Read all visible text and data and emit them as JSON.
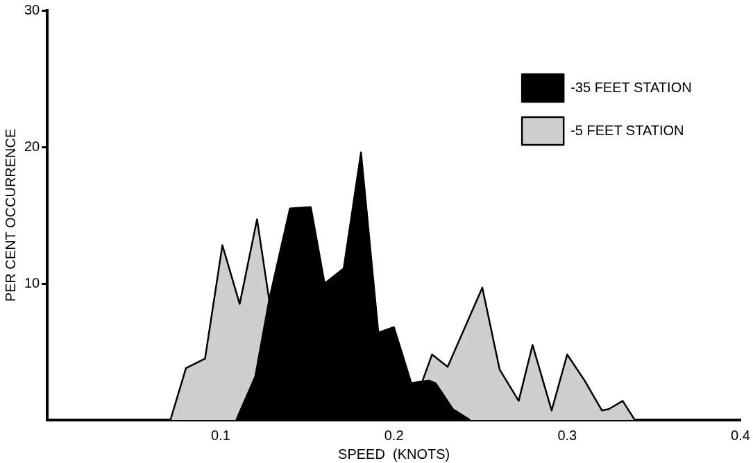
{
  "chart_data": {
    "type": "area",
    "xlabel": "SPEED  (KNOTS)",
    "ylabel": "PER CENT OCCURRENCE",
    "xlim": [
      0,
      0.4
    ],
    "xticks": [
      0.1,
      0.2,
      0.3,
      0.4
    ],
    "ylim": [
      0,
      30
    ],
    "yticks": [
      10,
      20,
      30
    ],
    "grid": false,
    "legend": "top right",
    "series": [
      {
        "name": "-5 FEET STATION",
        "color": "#cfcfcf",
        "x": [
          0.071,
          0.08,
          0.091,
          0.101,
          0.111,
          0.121,
          0.128,
          0.17,
          0.216,
          0.222,
          0.231,
          0.251,
          0.261,
          0.272,
          0.28,
          0.291,
          0.3,
          0.31,
          0.32,
          0.324,
          0.332,
          0.339
        ],
        "values": [
          0,
          3.8,
          4.5,
          12.8,
          8.5,
          14.7,
          8.8,
          null,
          2.7,
          4.8,
          3.9,
          9.7,
          3.7,
          1.4,
          5.5,
          0.7,
          4.8,
          2.9,
          0.7,
          0.8,
          1.4,
          0
        ]
      },
      {
        "name": "-35 FEET STATION",
        "color": "#000000",
        "x": [
          0.109,
          0.12,
          0.128,
          0.14,
          0.152,
          0.16,
          0.171,
          0.181,
          0.191,
          0.2,
          0.21,
          0.22,
          0.224,
          0.234,
          0.244
        ],
        "values": [
          0,
          3.2,
          8.8,
          15.5,
          15.6,
          10,
          11.1,
          19.6,
          6.4,
          6.8,
          2.7,
          2.9,
          2.7,
          0.8,
          0
        ]
      }
    ]
  }
}
